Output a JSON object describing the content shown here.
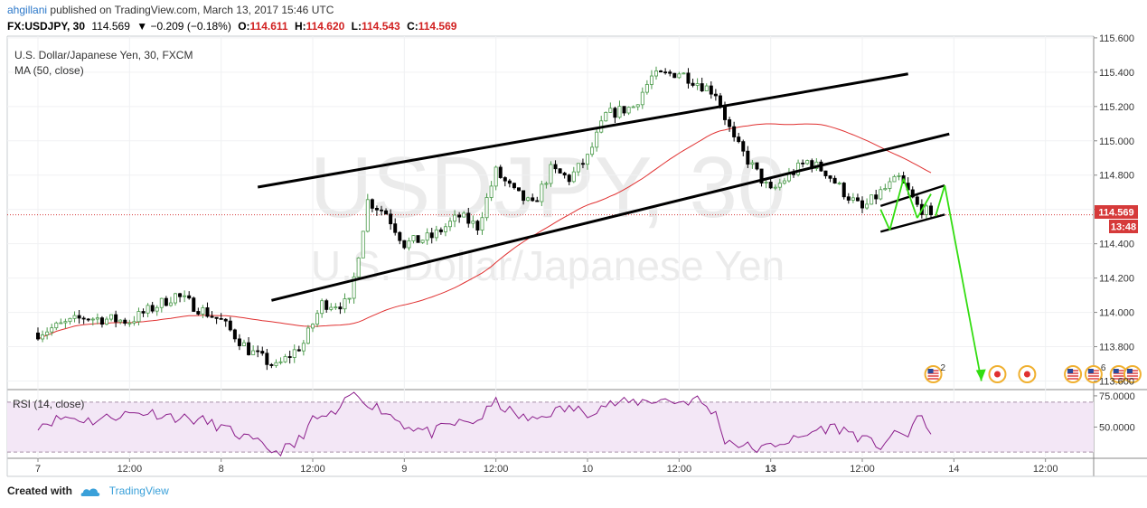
{
  "header": {
    "author": "ahgillani",
    "published_text": "published on TradingView.com, March 13, 2017 15:46 UTC",
    "symbol": "FX:USDJPY, 30",
    "last": "114.569",
    "change": "▼ −0.209 (−0.18%)",
    "open_label": "O:",
    "open": "114.611",
    "high_label": "H:",
    "high": "114.620",
    "low_label": "L:",
    "low": "114.543",
    "close_label": "C:",
    "close": "114.569"
  },
  "main_legend": {
    "title": "U.S. Dollar/Japanese Yen, 30, FXCM",
    "ma": "MA (50, close)"
  },
  "watermark": {
    "symbol": "USDJPY, 30",
    "name": "U.S. Dollar/Japanese Yen"
  },
  "rsi_legend": "RSI (14, close)",
  "price_label": "114.569",
  "countdown_label": "13:48",
  "event_counts": [
    "2",
    "6"
  ],
  "footer": {
    "created_with": "Created with",
    "brand": "TradingView"
  },
  "colors": {
    "up": "#4a9a4a",
    "down": "#000000",
    "ma": "#e03030",
    "arrows": "#33dd11",
    "rsi": "#8b1d8b",
    "price_tag": "#d63a3a"
  },
  "chart_data": [
    {
      "type": "candlestick",
      "title": "U.S. Dollar/Japanese Yen, 30, FXCM",
      "y_ticks": [
        113.6,
        113.8,
        114.0,
        114.2,
        114.4,
        114.6,
        114.8,
        115.0,
        115.2,
        115.4,
        115.6
      ],
      "y_tick_labels": [
        "113.600",
        "113.800",
        "114.000",
        "114.200",
        "114.400",
        "114.600",
        "114.800",
        "115.000",
        "115.200",
        "115.400",
        "115.600"
      ],
      "ylim": [
        113.55,
        115.61
      ],
      "x_tick_labels": [
        "7",
        "12:00",
        "8",
        "12:00",
        "9",
        "12:00",
        "10",
        "12:00",
        "13",
        "12:00",
        "14",
        "12:00"
      ],
      "x_tick_positions": [
        0,
        20,
        40,
        60,
        80,
        100,
        120,
        140,
        160,
        180,
        200,
        220
      ],
      "x_max_bars": 239,
      "anchors": [
        [
          0,
          113.88
        ],
        [
          10,
          113.97
        ],
        [
          20,
          113.95
        ],
        [
          30,
          114.1
        ],
        [
          40,
          113.95
        ],
        [
          46,
          113.78
        ],
        [
          52,
          113.68
        ],
        [
          58,
          113.82
        ],
        [
          62,
          114.05
        ],
        [
          68,
          114.05
        ],
        [
          72,
          114.65
        ],
        [
          76,
          114.58
        ],
        [
          80,
          114.4
        ],
        [
          86,
          114.44
        ],
        [
          92,
          114.56
        ],
        [
          96,
          114.5
        ],
        [
          100,
          114.82
        ],
        [
          104,
          114.7
        ],
        [
          108,
          114.62
        ],
        [
          112,
          114.83
        ],
        [
          116,
          114.78
        ],
        [
          120,
          114.9
        ],
        [
          124,
          115.15
        ],
        [
          130,
          115.2
        ],
        [
          134,
          115.37
        ],
        [
          140,
          115.4
        ],
        [
          144,
          115.34
        ],
        [
          148,
          115.28
        ],
        [
          152,
          115.0
        ],
        [
          156,
          114.85
        ],
        [
          160,
          114.7
        ],
        [
          164,
          114.8
        ],
        [
          168,
          114.88
        ],
        [
          172,
          114.82
        ],
        [
          176,
          114.7
        ],
        [
          180,
          114.6
        ],
        [
          184,
          114.7
        ],
        [
          188,
          114.78
        ],
        [
          192,
          114.62
        ],
        [
          195,
          114.57
        ]
      ],
      "last_price": 114.569,
      "ma": {
        "name": "MA (50, close)",
        "period": 50
      },
      "channels": [
        {
          "from": [
            48,
            114.73
          ],
          "to": [
            190,
            115.39
          ]
        },
        {
          "from": [
            51,
            114.07
          ],
          "to": [
            199,
            115.04
          ]
        },
        {
          "from": [
            184,
            114.47
          ],
          "to": [
            198,
            114.57
          ]
        },
        {
          "from": [
            184,
            114.62
          ],
          "to": [
            198,
            114.74
          ]
        }
      ],
      "projection_arrow": {
        "from": [
          198,
          114.74
        ],
        "to": [
          206,
          113.6
        ]
      },
      "events": [
        {
          "bar": 195.5,
          "type": "flag",
          "count": "2"
        },
        {
          "bar": 209.5,
          "type": "dot"
        },
        {
          "bar": 216,
          "type": "dot"
        },
        {
          "bar": 226,
          "type": "flag"
        },
        {
          "bar": 230.5,
          "type": "flag",
          "count": "6"
        },
        {
          "bar": 236,
          "type": "flag"
        },
        {
          "bar": 239,
          "type": "flag"
        }
      ]
    },
    {
      "type": "line",
      "title": "RSI (14, close)",
      "y_ticks": [
        50.0,
        75.0
      ],
      "y_tick_labels": [
        "50.0000",
        "75.0000"
      ],
      "ylim": [
        25,
        80
      ],
      "band": [
        30,
        70
      ],
      "anchors": [
        [
          0,
          52
        ],
        [
          6,
          58
        ],
        [
          12,
          55
        ],
        [
          18,
          60
        ],
        [
          24,
          62
        ],
        [
          30,
          58
        ],
        [
          36,
          55
        ],
        [
          40,
          50
        ],
        [
          46,
          40
        ],
        [
          52,
          30
        ],
        [
          56,
          35
        ],
        [
          60,
          55
        ],
        [
          66,
          62
        ],
        [
          68,
          76
        ],
        [
          70,
          74
        ],
        [
          76,
          62
        ],
        [
          80,
          52
        ],
        [
          86,
          45
        ],
        [
          90,
          52
        ],
        [
          96,
          55
        ],
        [
          100,
          70
        ],
        [
          104,
          60
        ],
        [
          108,
          55
        ],
        [
          112,
          62
        ],
        [
          116,
          65
        ],
        [
          120,
          62
        ],
        [
          124,
          68
        ],
        [
          130,
          70
        ],
        [
          136,
          72
        ],
        [
          140,
          70
        ],
        [
          144,
          72
        ],
        [
          148,
          60
        ],
        [
          150,
          40
        ],
        [
          154,
          35
        ],
        [
          158,
          32
        ],
        [
          162,
          38
        ],
        [
          166,
          40
        ],
        [
          170,
          48
        ],
        [
          174,
          50
        ],
        [
          178,
          45
        ],
        [
          180,
          40
        ],
        [
          184,
          35
        ],
        [
          186,
          42
        ],
        [
          190,
          45
        ],
        [
          192,
          58
        ],
        [
          195,
          48
        ]
      ]
    }
  ]
}
